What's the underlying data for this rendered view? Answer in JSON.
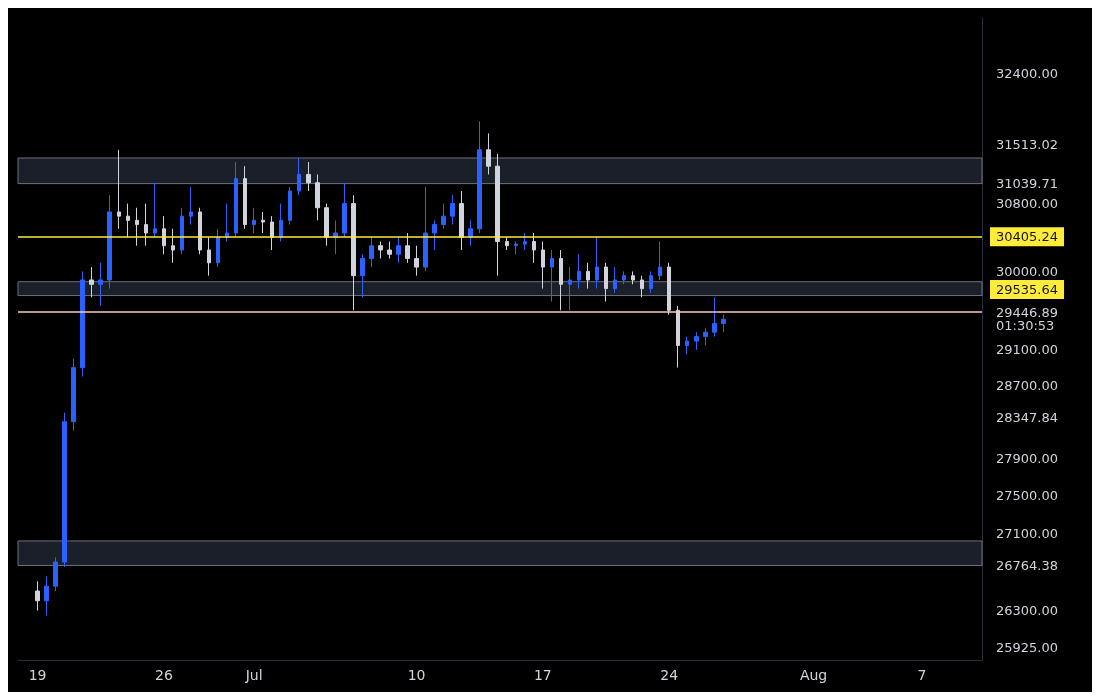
{
  "chart_data": {
    "type": "candlestick",
    "colors": [
      "#d1d4dc",
      "#2962ff",
      "#2962ff",
      "#2962ff",
      "#2962ff",
      "#2962ff",
      "#d1d4dc",
      "#2962ff",
      "#2962ff",
      "#d1d4dc",
      "#d1d4dc",
      "#d1d4dc",
      "#d1d4dc",
      "#2962ff",
      "#d1d4dc",
      "#d1d4dc",
      "#2962ff",
      "#2962ff",
      "#d1d4dc",
      "#d1d4dc",
      "#2962ff",
      "#2962ff",
      "#2962ff",
      "#d1d4dc",
      "#2962ff",
      "#d1d4dc",
      "#d1d4dc",
      "#2962ff",
      "#2962ff",
      "#2962ff",
      "#d1d4dc",
      "#d1d4dc",
      "#d1d4dc",
      "#2962ff",
      "#2962ff",
      "#d1d4dc",
      "#2962ff",
      "#2962ff",
      "#d1d4dc",
      "#d1d4dc",
      "#2962ff",
      "#d1d4dc",
      "#d1d4dc",
      "#2962ff",
      "#2962ff",
      "#2962ff",
      "#2962ff",
      "#d1d4dc",
      "#2962ff",
      "#2962ff",
      "#d1d4dc",
      "#d1d4dc",
      "#d1d4dc",
      "#2962ff",
      "#2962ff",
      "#d1d4dc",
      "#d1d4dc",
      "#2962ff",
      "#d1d4dc",
      "#2962ff",
      "#2962ff",
      "#d1d4dc",
      "#2962ff",
      "#d1d4dc",
      "#2962ff",
      "#2962ff",
      "#d1d4dc",
      "#d1d4dc",
      "#2962ff",
      "#2962ff",
      "#d1d4dc",
      "#d1d4dc",
      "#2962ff",
      "#2962ff",
      "#2962ff",
      "#2962ff",
      "#2962ff"
    ],
    "x": [
      "--06-19T00:00",
      "--06-19T12:00",
      "--06-20T00:00",
      "--06-20T12:00",
      "--06-21T00:00",
      "--06-21T12:00",
      "--06-22T00:00",
      "--06-22T12:00",
      "--06-23T00:00",
      "--06-23T12:00",
      "--06-24T00:00",
      "--06-24T12:00",
      "--06-25T00:00",
      "--06-25T12:00",
      "--06-26T00:00",
      "--06-26T12:00",
      "--06-27T00:00",
      "--06-27T12:00",
      "--06-28T00:00",
      "--06-28T12:00",
      "--06-29T00:00",
      "--06-29T12:00",
      "--06-30T00:00",
      "--06-30T12:00",
      "--07-01T00:00",
      "--07-01T12:00",
      "--07-02T00:00",
      "--07-02T12:00",
      "--07-03T00:00",
      "--07-03T12:00",
      "--07-04T00:00",
      "--07-04T12:00",
      "--07-05T00:00",
      "--07-05T12:00",
      "--07-06T00:00",
      "--07-06T12:00",
      "--07-07T00:00",
      "--07-07T12:00",
      "--07-08T00:00",
      "--07-08T12:00",
      "--07-09T00:00",
      "--07-09T12:00",
      "--07-10T00:00",
      "--07-10T12:00",
      "--07-11T00:00",
      "--07-11T12:00",
      "--07-12T00:00",
      "--07-12T12:00",
      "--07-13T00:00",
      "--07-13T12:00",
      "--07-14T00:00",
      "--07-14T12:00",
      "--07-15T00:00",
      "--07-15T12:00",
      "--07-16T00:00",
      "--07-16T12:00",
      "--07-17T00:00",
      "--07-17T12:00",
      "--07-18T00:00",
      "--07-18T12:00",
      "--07-19T00:00",
      "--07-19T12:00",
      "--07-20T00:00",
      "--07-20T12:00",
      "--07-21T00:00",
      "--07-21T12:00",
      "--07-22T00:00",
      "--07-22T12:00",
      "--07-23T00:00",
      "--07-23T12:00",
      "--07-24T00:00",
      "--07-24T12:00",
      "--07-25T00:00",
      "--07-25T12:00",
      "--07-26T00:00",
      "--07-26T12:00",
      "--07-27T00:00"
    ],
    "ohlc": [
      [
        26500,
        26600,
        26300,
        26400
      ],
      [
        26400,
        26650,
        26250,
        26550
      ],
      [
        26550,
        26850,
        26500,
        26800
      ],
      [
        26800,
        28400,
        26750,
        28300
      ],
      [
        28300,
        29000,
        28200,
        28900
      ],
      [
        28900,
        30000,
        28800,
        29900
      ],
      [
        29900,
        30050,
        29700,
        29850
      ],
      [
        29850,
        30100,
        29600,
        29900
      ],
      [
        29900,
        30900,
        29800,
        30700
      ],
      [
        30700,
        31450,
        30500,
        30650
      ],
      [
        30650,
        30800,
        30400,
        30600
      ],
      [
        30600,
        30750,
        30300,
        30550
      ],
      [
        30550,
        30800,
        30300,
        30450
      ],
      [
        30450,
        31050,
        30400,
        30500
      ],
      [
        30500,
        30650,
        30200,
        30300
      ],
      [
        30300,
        30500,
        30100,
        30250
      ],
      [
        30250,
        30750,
        30200,
        30650
      ],
      [
        30650,
        31000,
        30550,
        30700
      ],
      [
        30700,
        30750,
        30200,
        30250
      ],
      [
        30250,
        30400,
        29950,
        30100
      ],
      [
        30100,
        30500,
        30050,
        30400
      ],
      [
        30400,
        30800,
        30350,
        30450
      ],
      [
        30450,
        31300,
        30400,
        31100
      ],
      [
        31100,
        31250,
        30500,
        30550
      ],
      [
        30550,
        30750,
        30450,
        30600
      ],
      [
        30600,
        30700,
        30450,
        30580
      ],
      [
        30580,
        30650,
        30250,
        30400
      ],
      [
        30400,
        30800,
        30350,
        30600
      ],
      [
        30600,
        31000,
        30550,
        30950
      ],
      [
        30950,
        31350,
        30900,
        31150
      ],
      [
        31150,
        31300,
        30950,
        31050
      ],
      [
        31050,
        31150,
        30600,
        30750
      ],
      [
        30750,
        30800,
        30300,
        30400
      ],
      [
        30400,
        30600,
        30200,
        30450
      ],
      [
        30450,
        31050,
        30400,
        30800
      ],
      [
        30800,
        30900,
        29550,
        29950
      ],
      [
        29950,
        30200,
        29700,
        30150
      ],
      [
        30150,
        30400,
        30050,
        30300
      ],
      [
        30300,
        30350,
        30150,
        30250
      ],
      [
        30250,
        30350,
        30150,
        30200
      ],
      [
        30200,
        30400,
        30100,
        30300
      ],
      [
        30300,
        30450,
        30100,
        30150
      ],
      [
        30150,
        30300,
        29950,
        30050
      ],
      [
        30050,
        31000,
        30000,
        30450
      ],
      [
        30450,
        30600,
        30250,
        30550
      ],
      [
        30550,
        30800,
        30500,
        30650
      ],
      [
        30650,
        30900,
        30550,
        30800
      ],
      [
        30800,
        30950,
        30250,
        30400
      ],
      [
        30400,
        30600,
        30300,
        30500
      ],
      [
        30500,
        31800,
        30450,
        31450
      ],
      [
        31450,
        31650,
        31150,
        31250
      ],
      [
        31250,
        31400,
        29950,
        30350
      ],
      [
        30350,
        30400,
        30250,
        30300
      ],
      [
        30300,
        30350,
        30200,
        30320
      ],
      [
        30320,
        30450,
        30250,
        30350
      ],
      [
        30350,
        30450,
        30100,
        30250
      ],
      [
        30250,
        30350,
        29800,
        30050
      ],
      [
        30050,
        30250,
        29650,
        30150
      ],
      [
        30150,
        30250,
        29550,
        29850
      ],
      [
        29850,
        30050,
        29550,
        29900
      ],
      [
        29900,
        30200,
        29800,
        30000
      ],
      [
        30000,
        30100,
        29800,
        29900
      ],
      [
        29900,
        30400,
        29800,
        30050
      ],
      [
        30050,
        30100,
        29650,
        29800
      ],
      [
        29800,
        30050,
        29750,
        29900
      ],
      [
        29900,
        30000,
        29850,
        29950
      ],
      [
        29950,
        30000,
        29850,
        29900
      ],
      [
        29900,
        29950,
        29700,
        29800
      ],
      [
        29800,
        30000,
        29750,
        29950
      ],
      [
        29950,
        30350,
        29900,
        30050
      ],
      [
        30050,
        30100,
        29500,
        29550
      ],
      [
        29550,
        29600,
        28900,
        29150
      ],
      [
        29150,
        29250,
        29050,
        29200
      ],
      [
        29200,
        29300,
        29100,
        29250
      ],
      [
        29250,
        29350,
        29150,
        29300
      ],
      [
        29300,
        29700,
        29250,
        29400
      ],
      [
        29400,
        29500,
        29300,
        29447
      ]
    ],
    "xlim": [
      "--06-17T22:00",
      "--08-10T08:00"
    ],
    "xticks": [
      {
        "value": "--06-19",
        "label": "19"
      },
      {
        "value": "--06-26",
        "label": "26"
      },
      {
        "value": "--07-01",
        "label": "Jul"
      },
      {
        "value": "--07-10",
        "label": "10"
      },
      {
        "value": "--07-17",
        "label": "17"
      },
      {
        "value": "--07-24",
        "label": "24"
      },
      {
        "value": "--08-01",
        "label": "Aug"
      },
      {
        "value": "--08-07",
        "label": "7"
      }
    ],
    "log": "y",
    "ylim": [
      25800,
      33100
    ],
    "yticks": [
      {
        "value": 32400,
        "label": "32400.00"
      },
      31513.02,
      31039.71,
      {
        "value": 29446.89,
        "label": "29446.89\n01:30:53"
      },
      28347.84,
      26764.38,
      {
        "value": 30800,
        "label": "30800.00"
      },
      {
        "value": 30000,
        "label": "30000.00"
      },
      {
        "value": 29100,
        "label": "29100.00"
      },
      {
        "value": 28700,
        "label": "28700.00"
      },
      {
        "value": 27900,
        "label": "27900.00"
      },
      {
        "value": 27500,
        "label": "27500.00"
      },
      {
        "value": 27100,
        "label": "27100.00"
      },
      {
        "value": 26300,
        "label": "26300.00"
      },
      {
        "value": 25925,
        "label": "25925.00"
      }
    ],
    "ref_lines": [
      {
        "axis": "y",
        "value": 30405.24,
        "label": "30405.24",
        "color": "#ffeb3b"
      },
      {
        "axis": "y",
        "value": 29535.64,
        "label": "29535.64",
        "color": "#f8c8cc"
      }
    ],
    "bands": [
      {
        "axis": "y",
        "from": 31039.71,
        "to": 31350,
        "color": "#1e222d"
      },
      {
        "axis": "y",
        "from": 29720,
        "to": 29880,
        "color": "#1e222d"
      },
      {
        "axis": "y",
        "from": 26764.38,
        "to": 27020,
        "color": "#1e222d"
      }
    ],
    "grid": false
  }
}
